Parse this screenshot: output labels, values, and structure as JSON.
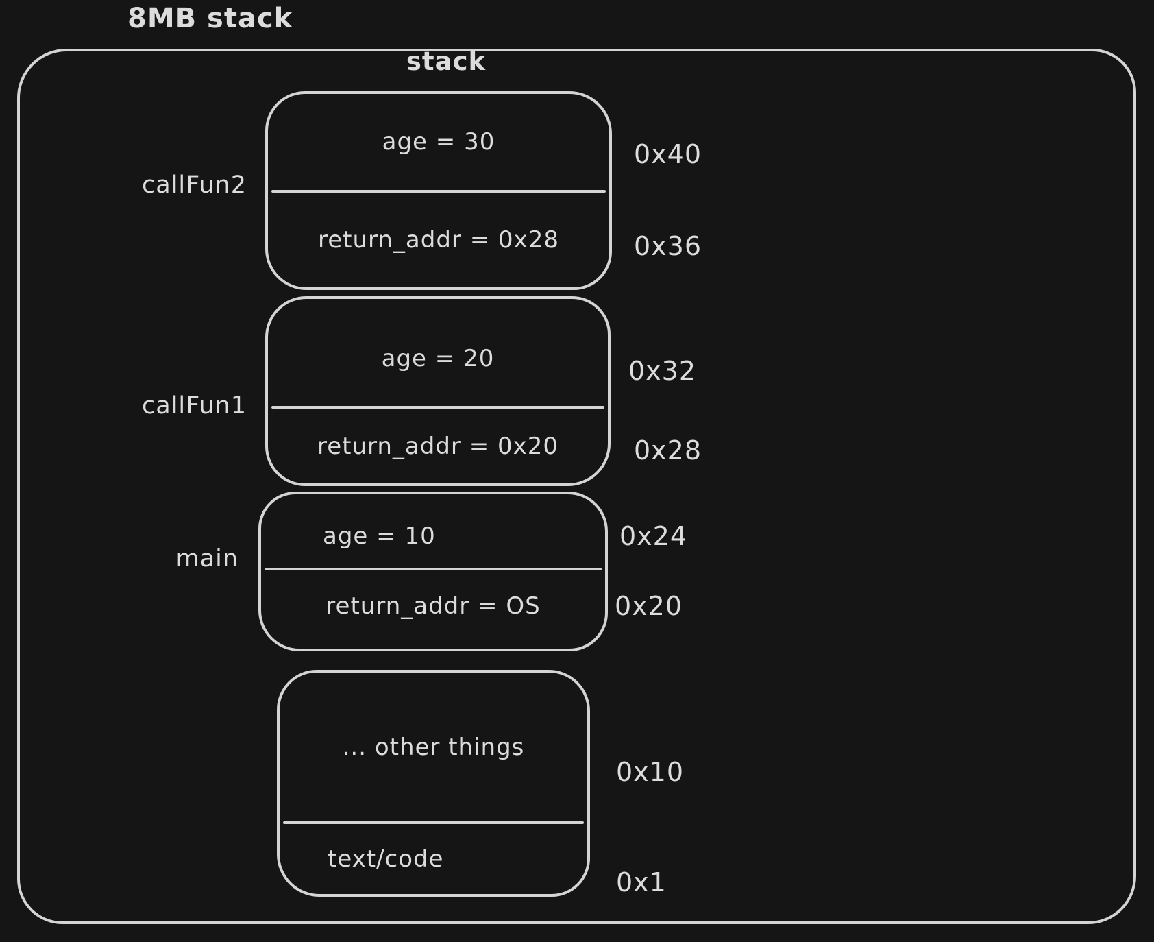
{
  "title": "8MB stack",
  "container_label": "stack",
  "colors": {
    "background": "#151515",
    "stroke": "#d4d4d4",
    "text": "#dcdcdc"
  },
  "frames": [
    {
      "label": "callFun2",
      "top_text": "age = 30",
      "bottom_text": "return_addr = 0x28",
      "top_address": "0x40",
      "bottom_address": "0x36"
    },
    {
      "label": "callFun1",
      "top_text": "age = 20",
      "bottom_text": "return_addr = 0x20",
      "top_address": "0x32",
      "bottom_address": "0x28"
    },
    {
      "label": "main",
      "top_text": "age = 10",
      "bottom_text": "return_addr = OS",
      "top_address": "0x24",
      "bottom_address": "0x20"
    },
    {
      "label": "",
      "top_text": "... other things",
      "bottom_text": "text/code",
      "top_address": "0x10",
      "bottom_address": "0x1"
    }
  ]
}
